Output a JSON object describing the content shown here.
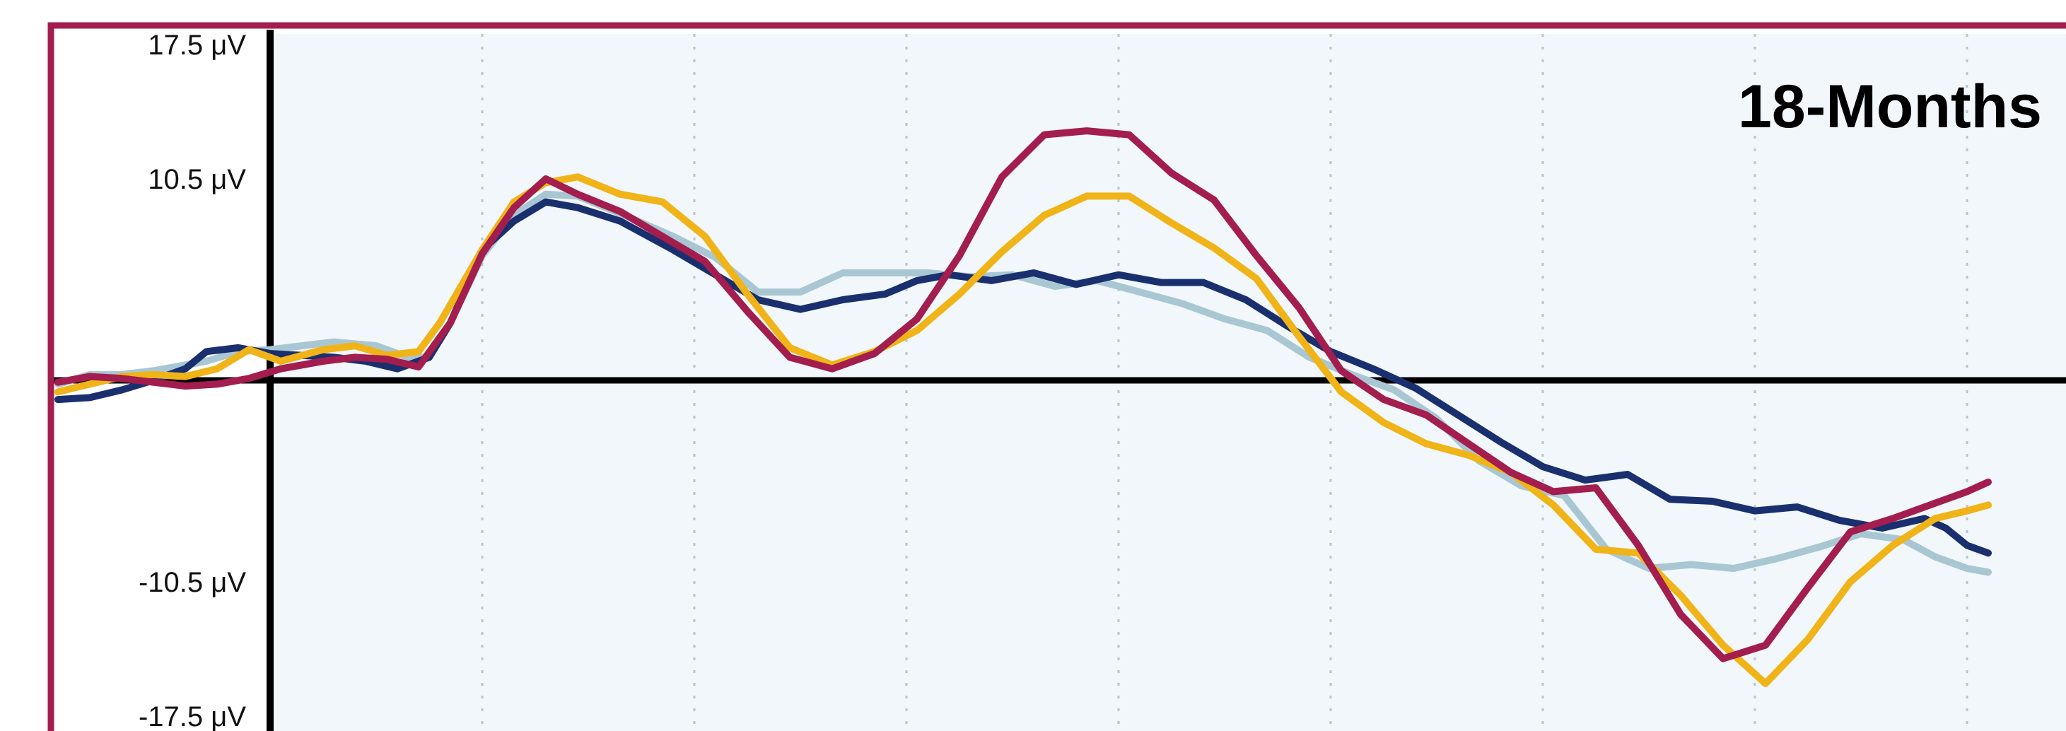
{
  "chart_data": {
    "type": "line",
    "title": "18-Months",
    "xlabel": "",
    "ylabel": "",
    "ylim": [
      -17.5,
      17.5
    ],
    "xlim": [
      -200,
      1700
    ],
    "grid": {
      "vertical_dotted": true,
      "horizontal": false
    },
    "y_ticks": [
      {
        "value": 17.5,
        "label": "17.5 μV"
      },
      {
        "value": 10.5,
        "label": "10.5 μV"
      },
      {
        "value": -10.5,
        "label": "-10.5 μV"
      },
      {
        "value": -17.5,
        "label": "-17.5 μV"
      }
    ],
    "x_gridlines": [
      200,
      400,
      600,
      800,
      1000,
      1200,
      1400,
      1600
    ],
    "colors": {
      "frame": "#a31d4e",
      "plot_background": "#f1f7fa"
    },
    "series": [
      {
        "color": "#a9c7d3",
        "points": [
          [
            -200,
            -0.2
          ],
          [
            -170,
            0.3
          ],
          [
            -140,
            0.3
          ],
          [
            -110,
            0.5
          ],
          [
            -60,
            1.0
          ],
          [
            -30,
            1.5
          ],
          [
            0,
            1.6
          ],
          [
            30,
            1.8
          ],
          [
            60,
            2.0
          ],
          [
            100,
            1.8
          ],
          [
            130,
            1.2
          ],
          [
            150,
            1.2
          ],
          [
            170,
            3.0
          ],
          [
            200,
            6.5
          ],
          [
            230,
            8.6
          ],
          [
            260,
            9.7
          ],
          [
            290,
            9.6
          ],
          [
            330,
            8.7
          ],
          [
            380,
            7.5
          ],
          [
            420,
            6.4
          ],
          [
            460,
            4.6
          ],
          [
            500,
            4.6
          ],
          [
            540,
            5.6
          ],
          [
            580,
            5.6
          ],
          [
            620,
            5.6
          ],
          [
            660,
            5.4
          ],
          [
            700,
            5.5
          ],
          [
            740,
            4.9
          ],
          [
            780,
            5.2
          ],
          [
            820,
            4.6
          ],
          [
            860,
            4.0
          ],
          [
            900,
            3.2
          ],
          [
            940,
            2.6
          ],
          [
            980,
            1.2
          ],
          [
            1020,
            0.3
          ],
          [
            1060,
            -0.5
          ],
          [
            1100,
            -2.0
          ],
          [
            1140,
            -4.2
          ],
          [
            1180,
            -5.5
          ],
          [
            1220,
            -6.0
          ],
          [
            1260,
            -8.8
          ],
          [
            1300,
            -9.8
          ],
          [
            1340,
            -9.6
          ],
          [
            1380,
            -9.8
          ],
          [
            1420,
            -9.3
          ],
          [
            1460,
            -8.7
          ],
          [
            1500,
            -8.0
          ],
          [
            1540,
            -8.3
          ],
          [
            1570,
            -9.2
          ],
          [
            1600,
            -9.8
          ],
          [
            1620,
            -10.0
          ]
        ]
      },
      {
        "color": "#1a2f6e",
        "points": [
          [
            -200,
            -1.0
          ],
          [
            -170,
            -0.9
          ],
          [
            -140,
            -0.5
          ],
          [
            -110,
            0.0
          ],
          [
            -80,
            0.6
          ],
          [
            -60,
            1.5
          ],
          [
            -30,
            1.7
          ],
          [
            0,
            1.4
          ],
          [
            30,
            1.3
          ],
          [
            60,
            1.2
          ],
          [
            90,
            1.0
          ],
          [
            120,
            0.6
          ],
          [
            150,
            1.2
          ],
          [
            170,
            3.0
          ],
          [
            200,
            6.8
          ],
          [
            230,
            8.3
          ],
          [
            260,
            9.3
          ],
          [
            290,
            9.0
          ],
          [
            330,
            8.3
          ],
          [
            380,
            6.8
          ],
          [
            420,
            5.5
          ],
          [
            460,
            4.2
          ],
          [
            500,
            3.7
          ],
          [
            540,
            4.2
          ],
          [
            580,
            4.5
          ],
          [
            610,
            5.2
          ],
          [
            640,
            5.5
          ],
          [
            680,
            5.2
          ],
          [
            720,
            5.6
          ],
          [
            760,
            5.0
          ],
          [
            800,
            5.5
          ],
          [
            840,
            5.1
          ],
          [
            880,
            5.1
          ],
          [
            920,
            4.2
          ],
          [
            960,
            2.8
          ],
          [
            1000,
            1.5
          ],
          [
            1040,
            0.6
          ],
          [
            1080,
            -0.4
          ],
          [
            1120,
            -1.8
          ],
          [
            1160,
            -3.2
          ],
          [
            1200,
            -4.5
          ],
          [
            1240,
            -5.2
          ],
          [
            1280,
            -4.9
          ],
          [
            1320,
            -6.2
          ],
          [
            1360,
            -6.3
          ],
          [
            1400,
            -6.8
          ],
          [
            1440,
            -6.6
          ],
          [
            1480,
            -7.3
          ],
          [
            1520,
            -7.7
          ],
          [
            1560,
            -7.2
          ],
          [
            1580,
            -7.7
          ],
          [
            1600,
            -8.6
          ],
          [
            1620,
            -9.0
          ]
        ]
      },
      {
        "color": "#f0b418",
        "points": [
          [
            -200,
            -0.6
          ],
          [
            -170,
            -0.2
          ],
          [
            -140,
            0.2
          ],
          [
            -110,
            0.3
          ],
          [
            -80,
            0.2
          ],
          [
            -50,
            0.6
          ],
          [
            -20,
            1.6
          ],
          [
            10,
            1.0
          ],
          [
            50,
            1.6
          ],
          [
            80,
            1.8
          ],
          [
            110,
            1.3
          ],
          [
            140,
            1.5
          ],
          [
            160,
            3.0
          ],
          [
            200,
            6.8
          ],
          [
            230,
            9.3
          ],
          [
            260,
            10.3
          ],
          [
            290,
            10.6
          ],
          [
            330,
            9.7
          ],
          [
            370,
            9.3
          ],
          [
            410,
            7.5
          ],
          [
            450,
            4.5
          ],
          [
            490,
            1.7
          ],
          [
            530,
            0.8
          ],
          [
            570,
            1.5
          ],
          [
            610,
            2.6
          ],
          [
            650,
            4.5
          ],
          [
            690,
            6.7
          ],
          [
            730,
            8.6
          ],
          [
            770,
            9.6
          ],
          [
            810,
            9.6
          ],
          [
            850,
            8.2
          ],
          [
            890,
            6.9
          ],
          [
            930,
            5.3
          ],
          [
            970,
            2.3
          ],
          [
            1010,
            -0.6
          ],
          [
            1050,
            -2.2
          ],
          [
            1090,
            -3.3
          ],
          [
            1130,
            -3.9
          ],
          [
            1170,
            -4.8
          ],
          [
            1210,
            -6.5
          ],
          [
            1250,
            -8.8
          ],
          [
            1290,
            -9.0
          ],
          [
            1330,
            -11.2
          ],
          [
            1370,
            -13.8
          ],
          [
            1410,
            -15.8
          ],
          [
            1450,
            -13.5
          ],
          [
            1490,
            -10.5
          ],
          [
            1530,
            -8.6
          ],
          [
            1570,
            -7.2
          ],
          [
            1600,
            -6.8
          ],
          [
            1620,
            -6.5
          ]
        ]
      },
      {
        "color": "#a31d4e",
        "points": [
          [
            -200,
            -0.1
          ],
          [
            -170,
            0.2
          ],
          [
            -140,
            0.1
          ],
          [
            -110,
            -0.1
          ],
          [
            -80,
            -0.3
          ],
          [
            -50,
            -0.2
          ],
          [
            -20,
            0.1
          ],
          [
            10,
            0.6
          ],
          [
            50,
            1.0
          ],
          [
            80,
            1.2
          ],
          [
            110,
            1.1
          ],
          [
            140,
            0.7
          ],
          [
            170,
            3.0
          ],
          [
            200,
            6.6
          ],
          [
            230,
            9.0
          ],
          [
            260,
            10.5
          ],
          [
            290,
            9.7
          ],
          [
            330,
            8.8
          ],
          [
            370,
            7.5
          ],
          [
            410,
            6.2
          ],
          [
            450,
            3.6
          ],
          [
            490,
            1.2
          ],
          [
            530,
            0.6
          ],
          [
            570,
            1.4
          ],
          [
            610,
            3.2
          ],
          [
            650,
            6.5
          ],
          [
            690,
            10.6
          ],
          [
            730,
            12.8
          ],
          [
            770,
            13.0
          ],
          [
            810,
            12.8
          ],
          [
            850,
            10.8
          ],
          [
            890,
            9.4
          ],
          [
            930,
            6.5
          ],
          [
            970,
            3.8
          ],
          [
            1010,
            0.5
          ],
          [
            1050,
            -1.0
          ],
          [
            1090,
            -1.8
          ],
          [
            1130,
            -3.3
          ],
          [
            1170,
            -4.8
          ],
          [
            1210,
            -5.8
          ],
          [
            1250,
            -5.6
          ],
          [
            1290,
            -8.6
          ],
          [
            1330,
            -12.2
          ],
          [
            1370,
            -14.5
          ],
          [
            1410,
            -13.8
          ],
          [
            1450,
            -10.8
          ],
          [
            1490,
            -7.9
          ],
          [
            1530,
            -7.2
          ],
          [
            1570,
            -6.4
          ],
          [
            1600,
            -5.8
          ],
          [
            1620,
            -5.3
          ]
        ]
      }
    ]
  }
}
